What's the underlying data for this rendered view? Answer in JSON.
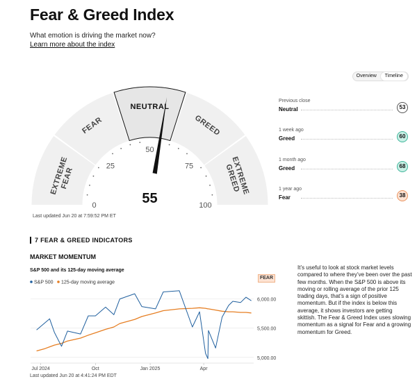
{
  "header": {
    "title": "Fear & Greed Index",
    "subtitle": "What emotion is driving the market now?",
    "learn_link": "Learn more about the index"
  },
  "toggle": {
    "overview": "Overview",
    "timeline": "Timeline",
    "selected": "Timeline"
  },
  "gauge": {
    "value": 55,
    "value_text": "55",
    "segments": [
      "EXTREME FEAR",
      "FEAR",
      "NEUTRAL",
      "GREED",
      "EXTREME GREED"
    ],
    "active_segment": "NEUTRAL",
    "ticks": [
      "0",
      "25",
      "50",
      "75",
      "100"
    ],
    "updated": "Last updated Jun 20 at 7:59:52 PM ET"
  },
  "history": [
    {
      "period": "Previous close",
      "label": "Neutral",
      "value": "53",
      "color": "#ffffff",
      "border": "#555555"
    },
    {
      "period": "1 week ago",
      "label": "Greed",
      "value": "60",
      "color": "#c9f0e6",
      "border": "#3fb59a"
    },
    {
      "period": "1 month ago",
      "label": "Greed",
      "value": "68",
      "color": "#c9f0e6",
      "border": "#3fb59a"
    },
    {
      "period": "1 year ago",
      "label": "Fear",
      "value": "38",
      "color": "#fde3d3",
      "border": "#e9935f"
    }
  ],
  "indicators": {
    "section_title": "7 FEAR & GREED INDICATORS",
    "momentum_title": "MARKET MOMENTUM",
    "chart_title": "S&P 500 and its 125-day moving average",
    "rating": "FEAR",
    "updated": "Last updated Jun 20 at 4:41:24 PM EDT",
    "description": "It’s useful to look at stock market levels compared to where they’ve been over the past few months. When the S&P 500 is above its moving or rolling average of the prior 125 trading days, that’s a sign of positive momentum. But if the index is below this average, it shows investors are getting skittish. The Fear & Greed Index uses slowing momentum as a signal for Fear and a growing momentum for Greed."
  },
  "chart_data": {
    "type": "line",
    "x": [
      "2024-06-24",
      "2024-07-08",
      "2024-07-16",
      "2024-07-24",
      "2024-08-05",
      "2024-08-15",
      "2024-09-06",
      "2024-09-19",
      "2024-10-01",
      "2024-10-18",
      "2024-11-01",
      "2024-11-11",
      "2024-12-06",
      "2024-12-18",
      "2025-01-10",
      "2025-01-23",
      "2025-02-19",
      "2025-03-13",
      "2025-03-25",
      "2025-04-04",
      "2025-04-08",
      "2025-04-09",
      "2025-04-21",
      "2025-05-02",
      "2025-05-13",
      "2025-05-20",
      "2025-06-02",
      "2025-06-11",
      "2025-06-20"
    ],
    "series": [
      {
        "name": "S&P 500",
        "color": "#1f5f9e",
        "values": [
          5470,
          5590,
          5660,
          5430,
          5190,
          5450,
          5400,
          5710,
          5710,
          5860,
          5730,
          6000,
          6090,
          5870,
          5830,
          6120,
          6140,
          5520,
          5780,
          5070,
          4980,
          5460,
          5160,
          5690,
          5890,
          5960,
          5940,
          6030,
          5970
        ]
      },
      {
        "name": "125-day moving average",
        "color": "#e67e22",
        "values": [
          5110,
          5150,
          5180,
          5210,
          5240,
          5280,
          5330,
          5380,
          5420,
          5480,
          5520,
          5580,
          5650,
          5700,
          5760,
          5800,
          5830,
          5840,
          5850,
          5840,
          5830,
          5830,
          5810,
          5790,
          5780,
          5780,
          5770,
          5770,
          5760
        ]
      }
    ],
    "x_ticks": [
      "Jul 2024",
      "Oct",
      "Jan 2025",
      "Apr"
    ],
    "x_tick_dates": [
      "2024-07-01",
      "2024-10-01",
      "2025-01-01",
      "2025-04-01"
    ],
    "y_ticks": [
      "5,000.00",
      "5,500.00",
      "6,000.00"
    ],
    "y_tick_values": [
      5000,
      5500,
      6000
    ],
    "ylim": [
      4950,
      6150
    ],
    "xlim": [
      "2024-06-14",
      "2025-06-24"
    ],
    "legend": "top-left",
    "grid": true
  }
}
